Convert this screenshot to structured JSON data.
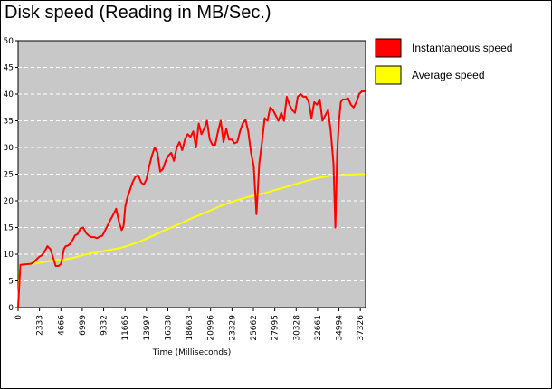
{
  "chart_data": {
    "type": "line",
    "title": "Disk speed (Reading in MB/Sec.)",
    "xlabel": "Time (Milliseconds)",
    "ylabel": "",
    "ylim": [
      0,
      50
    ],
    "xlim": [
      0,
      37900
    ],
    "y_ticks": [
      0,
      5,
      10,
      15,
      20,
      25,
      30,
      35,
      40,
      45,
      50
    ],
    "x_ticks": [
      0,
      2333,
      4666,
      6999,
      9332,
      11665,
      13997,
      16330,
      18663,
      20996,
      23329,
      25662,
      27995,
      30328,
      32661,
      34994,
      37326
    ],
    "grid": "horizontal dashed",
    "legend_position": "right",
    "plot_background": "#c8c8c8",
    "series": [
      {
        "name": "Instantaneous speed",
        "color": "#ff0000",
        "x": [
          0,
          250,
          1400,
          1700,
          2000,
          2300,
          2600,
          2900,
          3200,
          3500,
          3800,
          4100,
          4400,
          4700,
          5000,
          5200,
          5400,
          5600,
          5900,
          6200,
          6500,
          6800,
          7100,
          7400,
          7700,
          8000,
          8300,
          8600,
          8900,
          9200,
          9500,
          9800,
          10100,
          10400,
          10700,
          11000,
          11300,
          11500,
          11700,
          11900,
          12200,
          12500,
          12800,
          13100,
          13400,
          13700,
          14000,
          14300,
          14600,
          14900,
          15200,
          15500,
          15800,
          16100,
          16400,
          16700,
          17000,
          17300,
          17600,
          17900,
          18200,
          18500,
          18800,
          19100,
          19400,
          19700,
          20000,
          20300,
          20600,
          20900,
          21200,
          21500,
          21800,
          22100,
          22400,
          22700,
          23000,
          23300,
          23600,
          23900,
          24200,
          24500,
          24800,
          25100,
          25400,
          25700,
          26000,
          26300,
          26600,
          26900,
          27200,
          27500,
          27800,
          28100,
          28400,
          28700,
          29000,
          29300,
          29600,
          29900,
          30200,
          30500,
          30800,
          31100,
          31400,
          31700,
          32000,
          32300,
          32600,
          32900,
          33200,
          33500,
          33800,
          34100,
          34400,
          34600,
          34800,
          35000,
          35200,
          35400,
          35700,
          36000,
          36300,
          36600,
          36900,
          37200,
          37500,
          37800
        ],
        "values": [
          0,
          8,
          8.2,
          8.5,
          9,
          9.5,
          9.8,
          10.5,
          11.5,
          11,
          9.5,
          7.8,
          7.8,
          8.2,
          11,
          11.5,
          11.6,
          11.8,
          12.5,
          13.5,
          13.8,
          14.8,
          15,
          14,
          13.5,
          13.2,
          13.2,
          13,
          13.3,
          13.5,
          14.5,
          15.5,
          16.5,
          17.5,
          18.5,
          16,
          14.5,
          15.2,
          19,
          20.5,
          22,
          23.5,
          24.5,
          24.8,
          23.5,
          23,
          24,
          26.5,
          28.5,
          30,
          29,
          25.5,
          26,
          27.5,
          28.5,
          29,
          27.5,
          30,
          31,
          29.5,
          31.5,
          32.5,
          32,
          33,
          30,
          34.5,
          32.5,
          33.5,
          35,
          31.5,
          30.5,
          30.5,
          33,
          35,
          31,
          33.5,
          31.5,
          31.5,
          30.8,
          31,
          33,
          34.5,
          35.2,
          33,
          29,
          26.5,
          17.5,
          27,
          31,
          35.5,
          35,
          37.5,
          37,
          36,
          35,
          36.5,
          35,
          39.5,
          38,
          37,
          36.5,
          39.5,
          40,
          39.5,
          39.5,
          38.5,
          35.5,
          38.5,
          38,
          39,
          35,
          36,
          37,
          33,
          27,
          15,
          29,
          35,
          38.5,
          39,
          39,
          39.2,
          38,
          37.5,
          38.5,
          40,
          40.5,
          40.5
        ]
      },
      {
        "name": "Average speed",
        "color": "#ffff00",
        "x": [
          0,
          200,
          1000,
          2000,
          3000,
          4000,
          5000,
          6000,
          7000,
          8000,
          9000,
          10000,
          11000,
          12000,
          13000,
          14000,
          15000,
          16000,
          17000,
          18000,
          19000,
          20000,
          21000,
          22000,
          23000,
          24000,
          25000,
          26000,
          27000,
          28000,
          29000,
          30000,
          31000,
          32000,
          33000,
          34000,
          35000,
          36000,
          37000,
          37800
        ],
        "values": [
          0,
          8,
          8.1,
          8.3,
          8.6,
          8.9,
          9,
          9.3,
          9.8,
          10.2,
          10.5,
          10.8,
          11.1,
          11.6,
          12.2,
          12.9,
          13.7,
          14.5,
          15.2,
          16,
          16.8,
          17.5,
          18.2,
          19,
          19.6,
          20.2,
          20.7,
          21.1,
          21.5,
          22,
          22.5,
          23,
          23.5,
          24,
          24.4,
          24.7,
          24.8,
          24.9,
          25,
          25
        ]
      }
    ]
  }
}
